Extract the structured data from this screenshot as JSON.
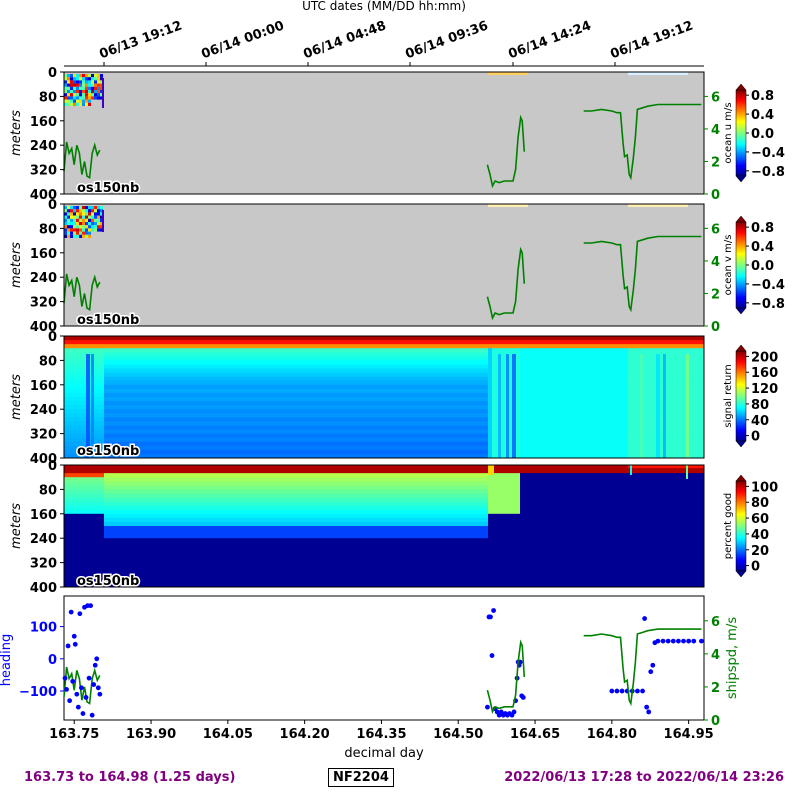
{
  "header": {
    "top_axis_label": "UTC dates (MM/DD hh:mm)"
  },
  "top_ticks": [
    "06/13 19:12",
    "06/14 00:00",
    "06/14 04:48",
    "06/14 09:36",
    "06/14 14:24",
    "06/14 19:12"
  ],
  "footer": {
    "range_text": "163.73 to 164.98 (1.25 days)",
    "cruise_id": "NF2204",
    "date_text": "2022/06/13 17:28 to 2022/06/14 23:26"
  },
  "colors": {
    "heading": "#0000ff",
    "speed": "#008000",
    "nodata": "#c8c8c8",
    "footer": "#800080"
  },
  "chart_data": [
    {
      "type": "heatmap",
      "ylabel": "meters",
      "yticks": [
        0,
        80,
        160,
        240,
        320,
        400
      ],
      "ylim": [
        400,
        0
      ],
      "instrument_label": "os150nb",
      "colorbar_label": "ocean u m/s",
      "colorbar_ticks": [
        "0.8",
        "0.4",
        "0.0",
        "−0.4",
        "−0.8"
      ],
      "colorbar_range": [
        -1,
        1
      ],
      "colormap": "jet",
      "overlay_right_ticks": [
        "6",
        "4",
        "2",
        "0"
      ],
      "overlay_right_range": [
        0,
        7.5
      ],
      "overlay_series": "shipspd"
    },
    {
      "type": "heatmap",
      "ylabel": "meters",
      "yticks": [
        0,
        80,
        160,
        240,
        320,
        400
      ],
      "ylim": [
        400,
        0
      ],
      "instrument_label": "os150nb",
      "colorbar_label": "ocean v m/s",
      "colorbar_ticks": [
        "0.8",
        "0.4",
        "0.0",
        "−0.4",
        "−0.8"
      ],
      "colorbar_range": [
        -1,
        1
      ],
      "colormap": "jet",
      "overlay_right_ticks": [
        "6",
        "4",
        "2",
        "0"
      ],
      "overlay_right_range": [
        0,
        7.5
      ],
      "overlay_series": "shipspd"
    },
    {
      "type": "heatmap",
      "ylabel": "meters",
      "yticks": [
        0,
        80,
        160,
        240,
        320,
        400
      ],
      "ylim": [
        400,
        0
      ],
      "instrument_label": "os150nb",
      "colorbar_label": "signal return",
      "colorbar_ticks": [
        "200",
        "160",
        "120",
        "80",
        "40",
        "0"
      ],
      "colorbar_range": [
        0,
        210
      ],
      "colormap": "jet"
    },
    {
      "type": "heatmap",
      "ylabel": "meters",
      "yticks": [
        0,
        80,
        160,
        240,
        320,
        400
      ],
      "ylim": [
        400,
        0
      ],
      "instrument_label": "os150nb",
      "colorbar_label": "percent good",
      "colorbar_ticks": [
        "100",
        "80",
        "60",
        "40",
        "20",
        "0"
      ],
      "colorbar_range": [
        0,
        105
      ],
      "colormap": "jet"
    },
    {
      "type": "scatter",
      "xlabel": "decimal day",
      "xlim": [
        163.73,
        164.98
      ],
      "xticks": [
        "163.75",
        "163.90",
        "164.05",
        "164.20",
        "164.35",
        "164.50",
        "164.65",
        "164.80",
        "164.95"
      ],
      "ylabel": "heading",
      "ylim": [
        -190,
        195
      ],
      "yticks": [
        "100",
        "0",
        "−100"
      ],
      "ylabel_right": "shipspd, m/s",
      "ylim_right": [
        0,
        7.5
      ],
      "yticks_right": [
        "6",
        "4",
        "2",
        "0"
      ],
      "series": [
        {
          "name": "heading",
          "points": [
            [
              163.732,
              -60
            ],
            [
              163.735,
              -95
            ],
            [
              163.738,
              40
            ],
            [
              163.741,
              -130
            ],
            [
              163.744,
              145
            ],
            [
              163.747,
              -70
            ],
            [
              163.75,
              70
            ],
            [
              163.752,
              45
            ],
            [
              163.755,
              -110
            ],
            [
              163.758,
              -150
            ],
            [
              163.761,
              140
            ],
            [
              163.764,
              -90
            ],
            [
              163.767,
              -170
            ],
            [
              163.77,
              160
            ],
            [
              163.773,
              -120
            ],
            [
              163.776,
              165
            ],
            [
              163.779,
              -60
            ],
            [
              163.782,
              165
            ],
            [
              163.785,
              -175
            ],
            [
              163.788,
              -80
            ],
            [
              163.791,
              -20
            ],
            [
              163.794,
              0
            ],
            [
              163.797,
              -90
            ],
            [
              163.8,
              -110
            ],
            [
              164.557,
              -150
            ],
            [
              164.56,
              130
            ],
            [
              164.563,
              130
            ],
            [
              164.566,
              10
            ],
            [
              164.569,
              150
            ],
            [
              164.572,
              -155
            ],
            [
              164.576,
              -165
            ],
            [
              164.58,
              -175
            ],
            [
              164.584,
              -165
            ],
            [
              164.588,
              -175
            ],
            [
              164.592,
              -170
            ],
            [
              164.596,
              -175
            ],
            [
              164.6,
              -170
            ],
            [
              164.605,
              -175
            ],
            [
              164.609,
              -165
            ],
            [
              164.612,
              -130
            ],
            [
              164.615,
              -60
            ],
            [
              164.617,
              -10
            ],
            [
              164.619,
              -20
            ],
            [
              164.621,
              -10
            ],
            [
              164.624,
              -115
            ],
            [
              164.627,
              -120
            ],
            [
              164.8,
              -100
            ],
            [
              164.81,
              -100
            ],
            [
              164.82,
              -100
            ],
            [
              164.83,
              -100
            ],
            [
              164.84,
              -100
            ],
            [
              164.85,
              -100
            ],
            [
              164.86,
              -100
            ],
            [
              164.864,
              125
            ],
            [
              164.868,
              -150
            ],
            [
              164.872,
              -165
            ],
            [
              164.876,
              -40
            ],
            [
              164.88,
              -20
            ],
            [
              164.884,
              50
            ],
            [
              164.89,
              55
            ],
            [
              164.9,
              55
            ],
            [
              164.91,
              55
            ],
            [
              164.92,
              55
            ],
            [
              164.93,
              55
            ],
            [
              164.94,
              55
            ],
            [
              164.95,
              55
            ],
            [
              164.96,
              55
            ],
            [
              164.975,
              55
            ]
          ]
        },
        {
          "name": "shipspd",
          "points": [
            [
              163.73,
              1.4
            ],
            [
              163.735,
              3.2
            ],
            [
              163.74,
              2.5
            ],
            [
              163.745,
              2.8
            ],
            [
              163.75,
              1.8
            ],
            [
              163.755,
              3.0
            ],
            [
              163.76,
              2.5
            ],
            [
              163.765,
              1.2
            ],
            [
              163.77,
              2.0
            ],
            [
              163.775,
              1.1
            ],
            [
              163.78,
              1.0
            ],
            [
              163.785,
              2.5
            ],
            [
              163.79,
              3.0
            ],
            [
              163.795,
              2.4
            ],
            [
              163.8,
              2.7
            ],
            [
              164.557,
              1.8
            ],
            [
              164.562,
              1.2
            ],
            [
              164.567,
              0.5
            ],
            [
              164.572,
              0.8
            ],
            [
              164.58,
              0.7
            ],
            [
              164.59,
              0.8
            ],
            [
              164.6,
              0.8
            ],
            [
              164.607,
              0.8
            ],
            [
              164.612,
              1.5
            ],
            [
              164.617,
              3.5
            ],
            [
              164.622,
              4.7
            ],
            [
              164.625,
              4.5
            ],
            [
              164.629,
              2.6
            ],
            [
              164.745,
              5.1
            ],
            [
              164.76,
              5.1
            ],
            [
              164.78,
              5.2
            ],
            [
              164.8,
              5.1
            ],
            [
              164.81,
              5.0
            ],
            [
              164.817,
              5.0
            ],
            [
              164.822,
              3.1
            ],
            [
              164.825,
              2.3
            ],
            [
              164.83,
              2.4
            ],
            [
              164.834,
              1.2
            ],
            [
              164.837,
              1.0
            ],
            [
              164.842,
              2.2
            ],
            [
              164.846,
              3.5
            ],
            [
              164.85,
              5.2
            ],
            [
              164.86,
              5.3
            ],
            [
              164.87,
              5.4
            ],
            [
              164.89,
              5.5
            ],
            [
              164.92,
              5.5
            ],
            [
              164.95,
              5.5
            ],
            [
              164.975,
              5.5
            ]
          ]
        }
      ]
    }
  ]
}
